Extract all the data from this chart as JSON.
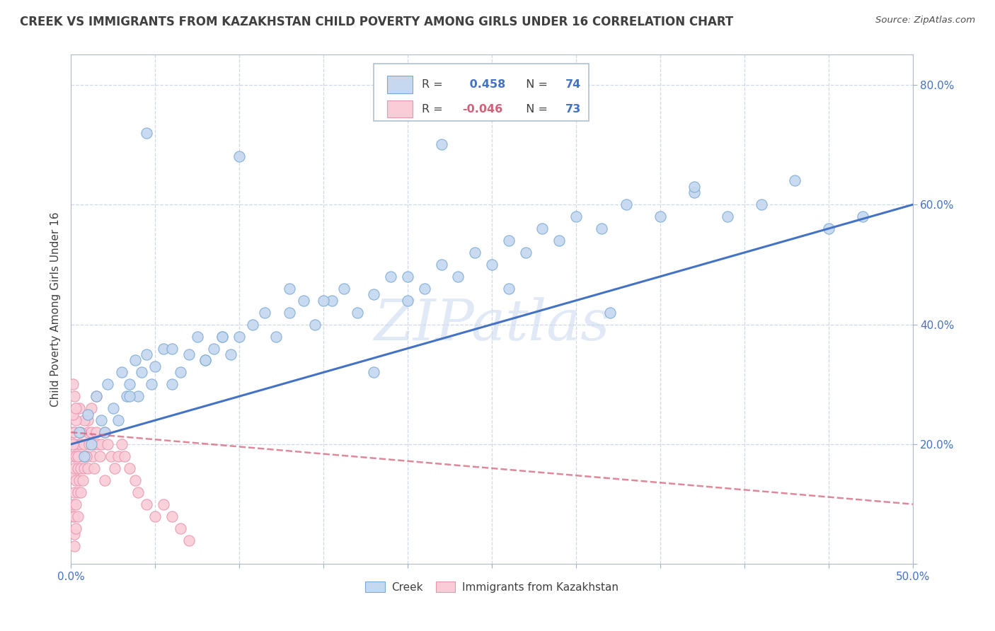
{
  "title": "CREEK VS IMMIGRANTS FROM KAZAKHSTAN CHILD POVERTY AMONG GIRLS UNDER 16 CORRELATION CHART",
  "source": "Source: ZipAtlas.com",
  "ylabel": "Child Poverty Among Girls Under 16",
  "watermark": "ZIPatlas",
  "xlim": [
    0.0,
    0.5
  ],
  "ylim": [
    0.0,
    0.85
  ],
  "xticks": [
    0.0,
    0.05,
    0.1,
    0.15,
    0.2,
    0.25,
    0.3,
    0.35,
    0.4,
    0.45,
    0.5
  ],
  "yticks": [
    0.0,
    0.2,
    0.4,
    0.6,
    0.8
  ],
  "creek_R": 0.458,
  "creek_N": 74,
  "immig_R": -0.046,
  "immig_N": 73,
  "creek_color": "#c5d8f0",
  "creek_edge_color": "#7aaad4",
  "creek_line_color": "#4472c4",
  "immig_color": "#f9ccd8",
  "immig_edge_color": "#e896b0",
  "immig_line_color": "#d4607a",
  "title_color": "#404040",
  "axis_tick_color": "#4472c4",
  "grid_color": "#d0d8e8",
  "creek_x": [
    0.005,
    0.008,
    0.01,
    0.012,
    0.015,
    0.018,
    0.02,
    0.022,
    0.025,
    0.028,
    0.03,
    0.033,
    0.035,
    0.038,
    0.04,
    0.042,
    0.045,
    0.048,
    0.05,
    0.055,
    0.06,
    0.065,
    0.07,
    0.075,
    0.08,
    0.085,
    0.09,
    0.095,
    0.1,
    0.108,
    0.115,
    0.122,
    0.13,
    0.138,
    0.145,
    0.155,
    0.162,
    0.17,
    0.18,
    0.19,
    0.2,
    0.21,
    0.22,
    0.23,
    0.24,
    0.25,
    0.26,
    0.27,
    0.28,
    0.29,
    0.3,
    0.315,
    0.33,
    0.35,
    0.37,
    0.39,
    0.41,
    0.43,
    0.45,
    0.47,
    0.045,
    0.1,
    0.22,
    0.37,
    0.2,
    0.15,
    0.09,
    0.06,
    0.035,
    0.08,
    0.13,
    0.18,
    0.26,
    0.32
  ],
  "creek_y": [
    0.22,
    0.18,
    0.25,
    0.2,
    0.28,
    0.24,
    0.22,
    0.3,
    0.26,
    0.24,
    0.32,
    0.28,
    0.3,
    0.34,
    0.28,
    0.32,
    0.35,
    0.3,
    0.33,
    0.36,
    0.3,
    0.32,
    0.35,
    0.38,
    0.34,
    0.36,
    0.38,
    0.35,
    0.38,
    0.4,
    0.42,
    0.38,
    0.42,
    0.44,
    0.4,
    0.44,
    0.46,
    0.42,
    0.45,
    0.48,
    0.44,
    0.46,
    0.5,
    0.48,
    0.52,
    0.5,
    0.54,
    0.52,
    0.56,
    0.54,
    0.58,
    0.56,
    0.6,
    0.58,
    0.62,
    0.58,
    0.6,
    0.64,
    0.56,
    0.58,
    0.72,
    0.68,
    0.7,
    0.63,
    0.48,
    0.44,
    0.38,
    0.36,
    0.28,
    0.34,
    0.46,
    0.32,
    0.46,
    0.42
  ],
  "immig_x": [
    0.001,
    0.001,
    0.001,
    0.001,
    0.001,
    0.002,
    0.002,
    0.002,
    0.002,
    0.002,
    0.002,
    0.003,
    0.003,
    0.003,
    0.003,
    0.004,
    0.004,
    0.004,
    0.004,
    0.005,
    0.005,
    0.005,
    0.006,
    0.006,
    0.006,
    0.007,
    0.007,
    0.008,
    0.008,
    0.009,
    0.01,
    0.01,
    0.011,
    0.012,
    0.013,
    0.014,
    0.015,
    0.016,
    0.017,
    0.018,
    0.02,
    0.022,
    0.024,
    0.026,
    0.028,
    0.03,
    0.032,
    0.035,
    0.038,
    0.04,
    0.045,
    0.05,
    0.055,
    0.06,
    0.065,
    0.07,
    0.01,
    0.012,
    0.015,
    0.008,
    0.005,
    0.003,
    0.002,
    0.001,
    0.001,
    0.001,
    0.002,
    0.003,
    0.004,
    0.006,
    0.009,
    0.014,
    0.02
  ],
  "immig_y": [
    0.22,
    0.18,
    0.15,
    0.1,
    0.08,
    0.2,
    0.16,
    0.12,
    0.08,
    0.05,
    0.03,
    0.18,
    0.14,
    0.1,
    0.06,
    0.2,
    0.16,
    0.12,
    0.08,
    0.22,
    0.18,
    0.14,
    0.2,
    0.16,
    0.12,
    0.18,
    0.14,
    0.2,
    0.16,
    0.18,
    0.22,
    0.16,
    0.2,
    0.22,
    0.18,
    0.2,
    0.22,
    0.2,
    0.18,
    0.2,
    0.22,
    0.2,
    0.18,
    0.16,
    0.18,
    0.2,
    0.18,
    0.16,
    0.14,
    0.12,
    0.1,
    0.08,
    0.1,
    0.08,
    0.06,
    0.04,
    0.24,
    0.26,
    0.28,
    0.24,
    0.26,
    0.24,
    0.28,
    0.3,
    0.25,
    0.2,
    0.22,
    0.26,
    0.18,
    0.22,
    0.18,
    0.16,
    0.14
  ],
  "creek_trend_x": [
    0.0,
    0.5
  ],
  "creek_trend_y": [
    0.2,
    0.6
  ],
  "immig_trend_x": [
    0.0,
    0.5
  ],
  "immig_trend_y": [
    0.22,
    0.1
  ]
}
